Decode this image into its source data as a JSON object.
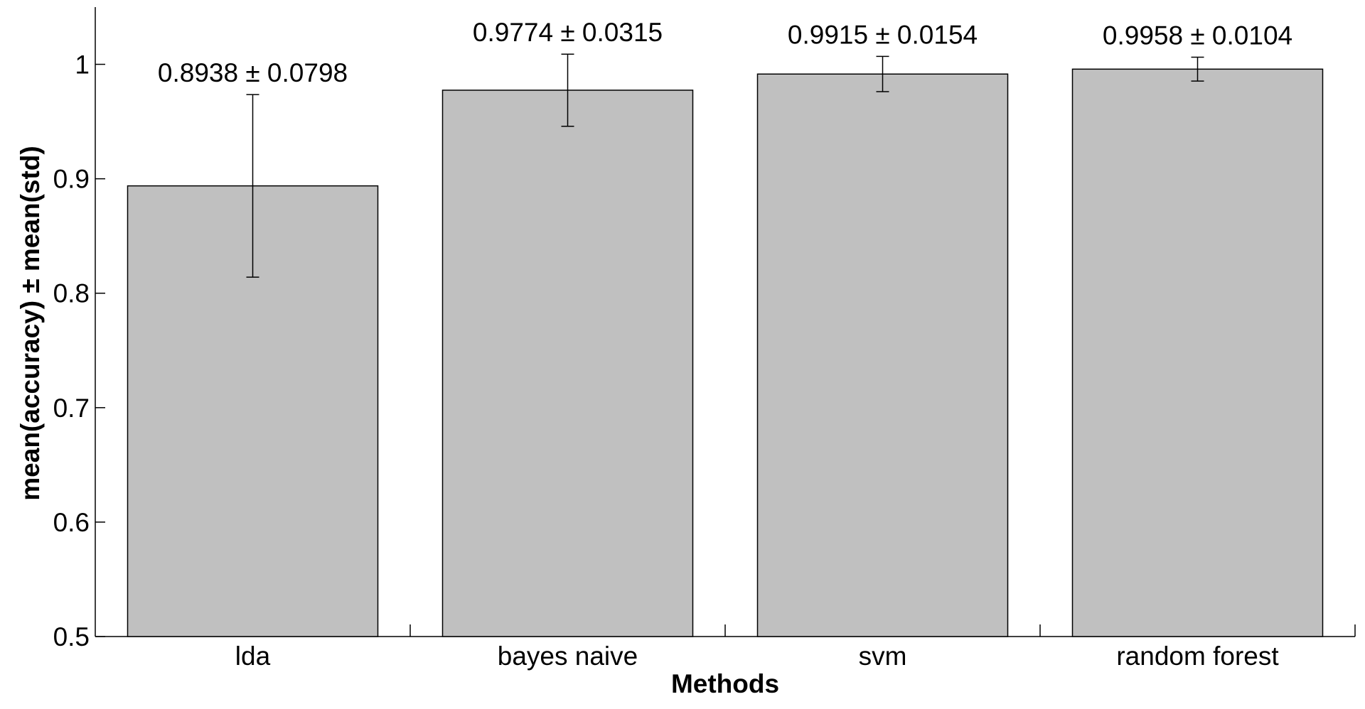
{
  "chart_data": {
    "type": "bar",
    "title": "",
    "xlabel": "Methods",
    "ylabel": "mean(accuracy) ± mean(std)",
    "categories": [
      "lda",
      "bayes naive",
      "svm",
      "random forest"
    ],
    "values": [
      0.8938,
      0.9774,
      0.9915,
      0.9958
    ],
    "errors": [
      0.0798,
      0.0315,
      0.0154,
      0.0104
    ],
    "data_labels": [
      "0.8938 ± 0.0798",
      "0.9774 ± 0.0315",
      "0.9915 ± 0.0154",
      "0.9958 ± 0.0104"
    ],
    "ylim": [
      0.5,
      1.05
    ],
    "yticks": [
      0.5,
      0.6,
      0.7,
      0.8,
      0.9,
      1
    ],
    "ytick_labels": [
      "0.5",
      "0.6",
      "0.7",
      "0.8",
      "0.9",
      "1"
    ],
    "grid": false,
    "legend": "none",
    "bar_color": "#c0c0c0",
    "edge_color": "#000000"
  }
}
